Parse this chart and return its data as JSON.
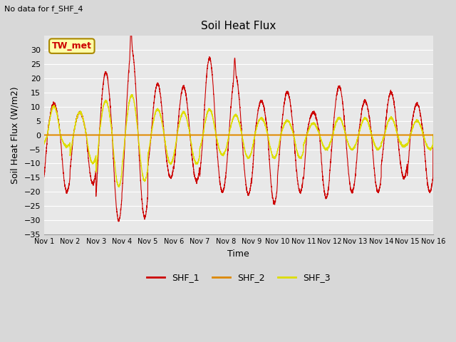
{
  "title": "Soil Heat Flux",
  "xlabel": "Time",
  "ylabel": "Soil Heat Flux (W/m2)",
  "annotation": "No data for f_SHF_4",
  "box_label": "TW_met",
  "ylim": [
    -35,
    35
  ],
  "yticks": [
    -35,
    -30,
    -25,
    -20,
    -15,
    -10,
    -5,
    0,
    5,
    10,
    15,
    20,
    25,
    30
  ],
  "num_days": 15,
  "color_shf1": "#cc0000",
  "color_shf2": "#dd8800",
  "color_shf3": "#dddd00",
  "fig_bg": "#d8d8d8",
  "plot_bg": "#e8e8e8",
  "grid_color": "#ffffff",
  "legend_labels": [
    "SHF_1",
    "SHF_2",
    "SHF_3"
  ],
  "box_facecolor": "#ffffaa",
  "box_edgecolor": "#aa8800"
}
